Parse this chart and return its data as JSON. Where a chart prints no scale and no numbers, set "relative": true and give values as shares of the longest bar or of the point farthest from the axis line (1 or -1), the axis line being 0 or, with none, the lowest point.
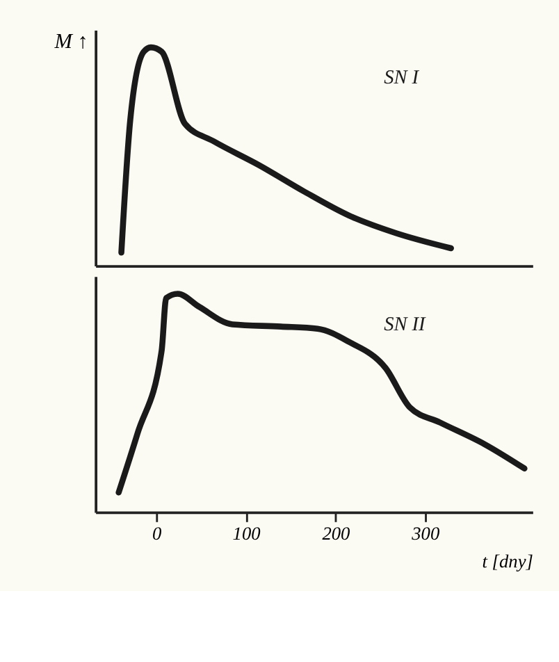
{
  "chart_data": [
    {
      "type": "line",
      "ylabel": "M ↑",
      "relative": true,
      "xlim": [
        -68,
        420
      ],
      "xticks": [
        0,
        100,
        200,
        300
      ],
      "tick_labels": false,
      "grid": false,
      "legend": false,
      "marker": "none",
      "line_style": "solid",
      "series": [
        {
          "name": "SN I",
          "color": "#1a1a1a",
          "x": [
            -39,
            -29,
            -14,
            -6,
            6,
            32,
            64,
            115,
            165,
            215,
            267,
            329
          ],
          "values": [
            0.06,
            0.67,
            0.98,
            1,
            0.98,
            0.65,
            0.57,
            0.46,
            0.34,
            0.23,
            0.15,
            0.08
          ]
        }
      ]
    },
    {
      "type": "line",
      "xlabel": "t [dny]",
      "relative": true,
      "xlim": [
        -68,
        420
      ],
      "xticks": [
        0,
        100,
        200,
        300
      ],
      "tick_labels": "x",
      "grid": false,
      "legend": false,
      "marker": "none",
      "line_style": "solid",
      "series": [
        {
          "name": "SN II",
          "color": "#1a1a1a",
          "x": [
            -42,
            -21,
            6,
            11,
            24,
            48,
            85,
            139,
            180,
            215,
            256,
            283,
            317,
            367,
            411
          ],
          "values": [
            0.09,
            0.36,
            0.74,
            0.98,
            1,
            0.94,
            0.86,
            0.85,
            0.84,
            0.78,
            0.66,
            0.48,
            0.41,
            0.31,
            0.2
          ]
        }
      ]
    }
  ]
}
